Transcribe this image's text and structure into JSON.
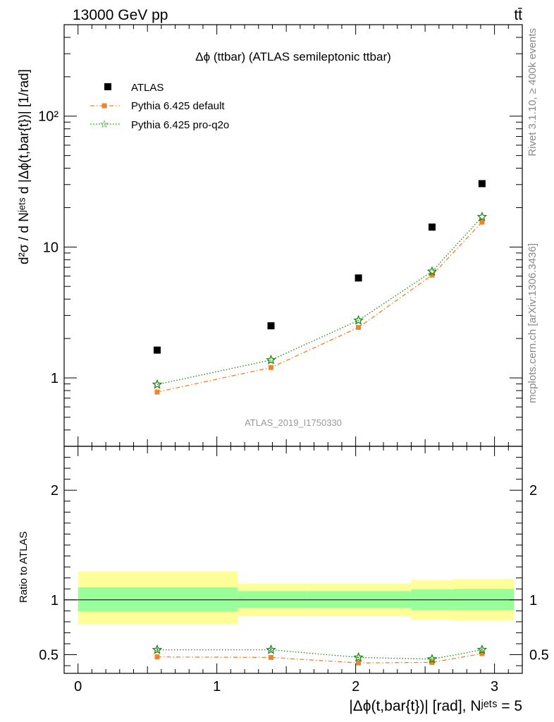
{
  "header": {
    "energy": "13000 GeV pp",
    "process": "tt̄",
    "rivet": "Rivet 3.1.10, ≥ 400k events",
    "mcplots": "mcplots.cern.ch [arXiv:1306.3436]"
  },
  "colors": {
    "atlas": "#000000",
    "default": "#f5812a",
    "pro_q2o": "#1a8a12",
    "band_outer": "#ffff99",
    "band_inner": "#99ff99"
  },
  "chart_data": [
    {
      "type": "scatter",
      "title": "Δϕ (ttbar) (ATLAS semileptonic ttbar)",
      "ylabel": "d²σ / d Nʲᵉᵗˢ d |Δϕ(t,bar{t})| [1/rad]",
      "xlabel": "",
      "yscale": "log",
      "xlim": [
        -0.1,
        3.2
      ],
      "ylim": [
        0.3,
        500
      ],
      "y_tick_labels": [
        "1",
        "10",
        "10²"
      ],
      "analysis_label": "ATLAS_2019_I1750330",
      "legend_position": "top-left",
      "series": [
        {
          "name": "ATLAS",
          "x": [
            0.57,
            1.39,
            2.02,
            2.55,
            2.91
          ],
          "values": [
            1.63,
            2.5,
            5.8,
            14.2,
            30.5
          ]
        },
        {
          "name": "Pythia 6.425 default",
          "x": [
            0.57,
            1.39,
            2.02,
            2.55,
            2.91
          ],
          "values": [
            0.78,
            1.2,
            2.43,
            6.1,
            15.5
          ]
        },
        {
          "name": "Pythia 6.425 pro-q2o",
          "x": [
            0.57,
            1.39,
            2.02,
            2.55,
            2.91
          ],
          "values": [
            0.89,
            1.37,
            2.75,
            6.5,
            17.0
          ]
        }
      ]
    },
    {
      "type": "line",
      "ylabel": "Ratio to ATLAS",
      "xlabel": "|Δϕ(t,bar{t})| [rad], Nʲᵉᵗˢ = 5",
      "xlim": [
        -0.1,
        3.2
      ],
      "ylim": [
        0.33,
        2.4
      ],
      "x_tick_labels": [
        "0",
        "1",
        "2",
        "3"
      ],
      "y_tick_labels": [
        "0.5",
        "1",
        "2"
      ],
      "bins": [
        [
          0,
          1.15
        ],
        [
          1.15,
          1.65
        ],
        [
          1.65,
          2.4
        ],
        [
          2.4,
          2.7
        ],
        [
          2.7,
          3.14
        ]
      ],
      "band_outer": [
        [
          0.775,
          1.26
        ],
        [
          0.85,
          1.15
        ],
        [
          0.85,
          1.15
        ],
        [
          0.82,
          1.18
        ],
        [
          0.81,
          1.19
        ]
      ],
      "band_inner": [
        [
          0.895,
          1.115
        ],
        [
          0.925,
          1.08
        ],
        [
          0.925,
          1.08
        ],
        [
          0.905,
          1.095
        ],
        [
          0.905,
          1.1
        ]
      ],
      "series": [
        {
          "name": "Pythia 6.425 default",
          "x": [
            0.57,
            1.39,
            2.02,
            2.55,
            2.91
          ],
          "values": [
            0.48,
            0.475,
            0.425,
            0.43,
            0.51
          ],
          "err": [
            0.02,
            0.02,
            0.005,
            0.005,
            0.01
          ]
        },
        {
          "name": "Pythia 6.425 pro-q2o",
          "x": [
            0.57,
            1.39,
            2.02,
            2.55,
            2.91
          ],
          "values": [
            0.545,
            0.545,
            0.475,
            0.46,
            0.545
          ],
          "err": [
            0.015,
            0.015,
            0.005,
            0.005,
            0.01
          ]
        }
      ]
    }
  ]
}
